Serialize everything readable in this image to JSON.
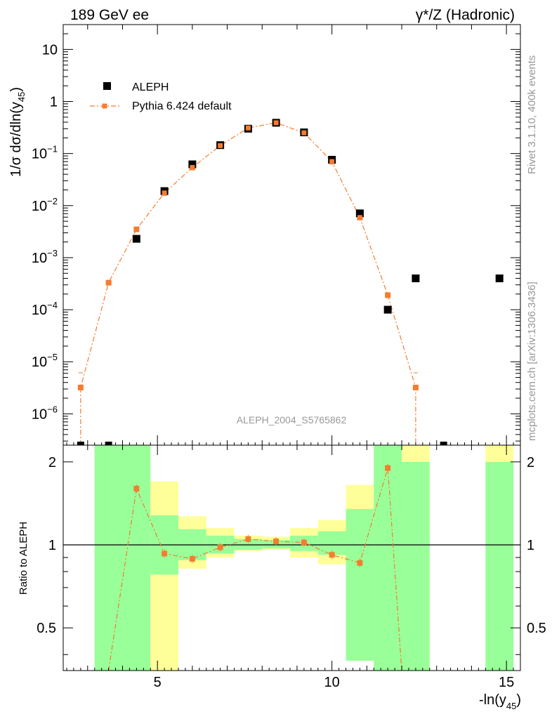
{
  "header": {
    "left": "189 GeV ee",
    "right": "γ*/Z (Hadronic)"
  },
  "side_labels": {
    "rivet": "Rivet 3.1.10,  400k events",
    "mcplots": "mcplots.cern.ch [arXiv:1306.3436]"
  },
  "analysis_id": "ALEPH_2004_S5765862",
  "main_ylabel": {
    "base": "1/σ  dσ/dln(y",
    "sub": "45",
    "close": ")"
  },
  "ratio_ylabel": "Ratio to ALEPH",
  "xlabel": {
    "base": "-ln(y",
    "sub": "45",
    "close": ")"
  },
  "legend": {
    "data": "ALEPH",
    "mc": "Pythia 6.424 default"
  },
  "colors": {
    "data": "#000000",
    "mc": "#f47c30",
    "band_inner": "#99ff99",
    "band_outer": "#ffff99"
  },
  "tick_labels": {
    "x": [
      "5",
      "10",
      "15"
    ],
    "main_y": [
      {
        "m": "10",
        "e": ""
      },
      {
        "m": "1",
        "e": ""
      },
      {
        "m": "10",
        "e": "−1"
      },
      {
        "m": "10",
        "e": "−2"
      },
      {
        "m": "10",
        "e": "−3"
      },
      {
        "m": "10",
        "e": "−4"
      },
      {
        "m": "10",
        "e": "−5"
      },
      {
        "m": "10",
        "e": "−6"
      }
    ],
    "ratio_y": [
      "2",
      "1",
      "0.5"
    ]
  },
  "chart_data": [
    {
      "type": "scatter",
      "panel": "main",
      "xlabel": "-ln(y45)",
      "ylabel": "1/σ dσ/dln(y45)",
      "xlim": [
        2.3,
        15.4
      ],
      "ylim": [
        2.5e-07,
        30
      ],
      "yscale": "log",
      "grid": false,
      "legend_position": "top-left",
      "series": [
        {
          "name": "ALEPH",
          "marker": "square",
          "x": [
            2.8,
            3.6,
            4.4,
            5.2,
            6.0,
            6.8,
            7.6,
            8.4,
            9.2,
            10.0,
            10.8,
            11.6,
            12.4,
            13.2,
            14.8
          ],
          "y": [
            null,
            null,
            0.0023,
            0.019,
            0.062,
            0.145,
            0.3,
            0.39,
            0.255,
            0.076,
            0.0071,
            0.0001,
            0.0004,
            null,
            0.0004
          ]
        },
        {
          "name": "Pythia 6.424 default",
          "marker": "square-line",
          "x": [
            2.8,
            3.6,
            4.4,
            5.2,
            6.0,
            6.8,
            7.6,
            8.4,
            9.2,
            10.0,
            10.8,
            11.6,
            12.4
          ],
          "y": [
            3.2e-06,
            0.00033,
            0.0035,
            0.0175,
            0.054,
            0.142,
            0.31,
            0.39,
            0.25,
            0.07,
            0.0059,
            0.00019,
            3.2e-06
          ]
        }
      ]
    },
    {
      "type": "area",
      "panel": "ratio",
      "xlabel": "-ln(y45)",
      "ylabel": "Ratio to ALEPH",
      "xlim": [
        2.3,
        15.4
      ],
      "ylim": [
        0.35,
        2.3
      ],
      "yscale": "log",
      "bands": [
        {
          "x0": 3.2,
          "x1": 4.0,
          "inner": [
            0.35,
            2.3
          ],
          "outer": [
            0.35,
            2.3
          ]
        },
        {
          "x0": 4.0,
          "x1": 4.8,
          "inner": [
            0.35,
            2.3
          ],
          "outer": [
            0.35,
            2.3
          ]
        },
        {
          "x0": 4.8,
          "x1": 5.6,
          "inner": [
            0.78,
            1.28
          ],
          "outer": [
            0.35,
            1.7
          ]
        },
        {
          "x0": 5.6,
          "x1": 6.4,
          "inner": [
            0.88,
            1.14
          ],
          "outer": [
            0.82,
            1.27
          ]
        },
        {
          "x0": 6.4,
          "x1": 7.2,
          "inner": [
            0.93,
            1.08
          ],
          "outer": [
            0.9,
            1.15
          ]
        },
        {
          "x0": 7.2,
          "x1": 8.0,
          "inner": [
            0.96,
            1.05
          ],
          "outer": [
            0.95,
            1.08
          ]
        },
        {
          "x0": 8.0,
          "x1": 8.8,
          "inner": [
            0.97,
            1.04
          ],
          "outer": [
            0.96,
            1.07
          ]
        },
        {
          "x0": 8.8,
          "x1": 9.6,
          "inner": [
            0.95,
            1.08
          ],
          "outer": [
            0.9,
            1.15
          ]
        },
        {
          "x0": 9.6,
          "x1": 10.4,
          "inner": [
            0.92,
            1.12
          ],
          "outer": [
            0.85,
            1.23
          ]
        },
        {
          "x0": 10.4,
          "x1": 11.2,
          "inner": [
            0.38,
            1.35
          ],
          "outer": [
            0.38,
            1.65
          ]
        },
        {
          "x0": 11.2,
          "x1": 12.0,
          "inner": [
            0.35,
            2.3
          ],
          "outer": [
            0.35,
            2.3
          ]
        },
        {
          "x0": 12.0,
          "x1": 12.8,
          "inner": [
            0.35,
            2.0
          ],
          "outer": [
            0.35,
            2.3
          ]
        },
        {
          "x0": 14.4,
          "x1": 15.2,
          "inner": [
            0.35,
            2.0
          ],
          "outer": [
            0.35,
            2.3
          ]
        }
      ],
      "series": [
        {
          "name": "Pythia 6.424 default",
          "x": [
            4.4,
            5.2,
            6.0,
            6.8,
            7.6,
            8.4,
            9.2,
            10.0,
            10.8,
            11.6
          ],
          "y": [
            1.6,
            0.93,
            0.89,
            0.98,
            1.05,
            1.03,
            1.02,
            0.92,
            0.86,
            1.9
          ]
        }
      ],
      "reference_line": 1
    }
  ]
}
